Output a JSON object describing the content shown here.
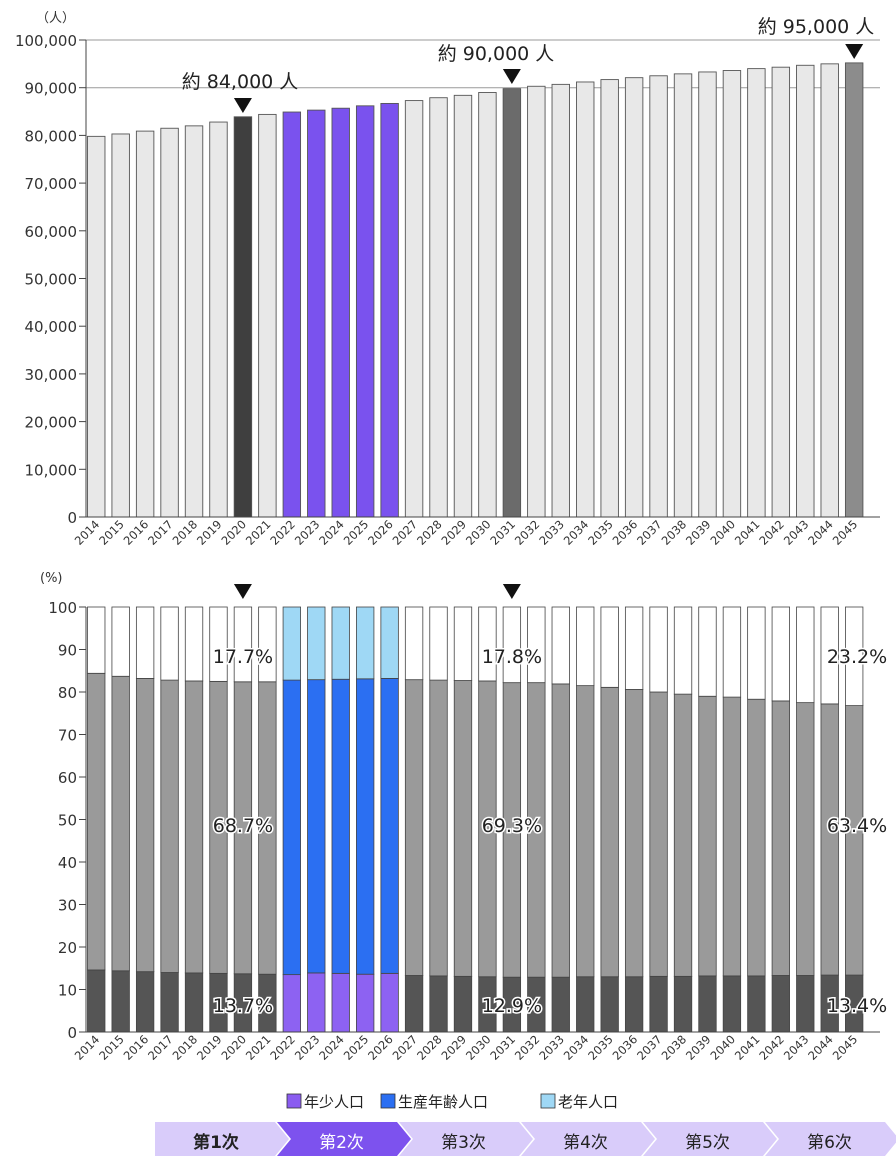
{
  "chart_data": [
    {
      "type": "bar",
      "unit_label": "（人）",
      "categories": [
        "2014",
        "2015",
        "2016",
        "2017",
        "2018",
        "2019",
        "2020",
        "2021",
        "2022",
        "2023",
        "2024",
        "2025",
        "2026",
        "2027",
        "2028",
        "2029",
        "2030",
        "2031",
        "2032",
        "2033",
        "2034",
        "2035",
        "2036",
        "2037",
        "2038",
        "2039",
        "2040",
        "2041",
        "2042",
        "2043",
        "2044",
        "2045"
      ],
      "values": [
        79800,
        80300,
        80900,
        81500,
        82000,
        82800,
        83900,
        84400,
        84900,
        85300,
        85700,
        86200,
        86700,
        87300,
        87900,
        88400,
        89000,
        89800,
        90300,
        90700,
        91200,
        91700,
        92100,
        92500,
        92900,
        93300,
        93600,
        94000,
        94300,
        94700,
        95000,
        95200
      ],
      "ylim": [
        0,
        100000
      ],
      "yticks": [
        "0",
        "10,000",
        "20,000",
        "30,000",
        "40,000",
        "50,000",
        "60,000",
        "70,000",
        "80,000",
        "90,000",
        "100,000"
      ],
      "highlight_dark": [
        "2020",
        "2031",
        "2045"
      ],
      "highlight_phase": [
        "2022",
        "2023",
        "2024",
        "2025",
        "2026"
      ],
      "annotations": [
        {
          "category": "2020",
          "text": "約 84,000 人"
        },
        {
          "category": "2031",
          "text": "約 90,000 人"
        },
        {
          "category": "2045",
          "text": "約 95,000 人"
        }
      ],
      "colors": {
        "default": "#e8e8e8",
        "dark2020": "#3f3f3f",
        "dark2031": "#6b6b6b",
        "dark2045": "#8c8c8c",
        "phase": "#7a52ee"
      }
    },
    {
      "type": "bar",
      "stacked": true,
      "unit_label": "(%)",
      "categories": [
        "2014",
        "2015",
        "2016",
        "2017",
        "2018",
        "2019",
        "2020",
        "2021",
        "2022",
        "2023",
        "2024",
        "2025",
        "2026",
        "2027",
        "2028",
        "2029",
        "2030",
        "2031",
        "2032",
        "2033",
        "2034",
        "2035",
        "2036",
        "2037",
        "2038",
        "2039",
        "2040",
        "2041",
        "2042",
        "2043",
        "2044",
        "2045"
      ],
      "ylim": [
        0,
        100
      ],
      "yticks": [
        "0",
        "10",
        "20",
        "30",
        "40",
        "50",
        "60",
        "70",
        "80",
        "90",
        "100"
      ],
      "series": [
        {
          "name": "年少人口",
          "values": [
            14.6,
            14.4,
            14.2,
            14.0,
            13.9,
            13.8,
            13.7,
            13.6,
            13.5,
            13.9,
            13.8,
            13.6,
            13.8,
            13.3,
            13.2,
            13.1,
            13.0,
            12.9,
            12.9,
            12.9,
            13.0,
            13.0,
            13.0,
            13.1,
            13.1,
            13.2,
            13.2,
            13.2,
            13.3,
            13.3,
            13.4,
            13.4
          ]
        },
        {
          "name": "生産年齢人口",
          "values": [
            69.8,
            69.3,
            69.0,
            68.8,
            68.7,
            68.7,
            68.7,
            68.8,
            69.3,
            69.0,
            69.2,
            69.5,
            69.4,
            69.6,
            69.6,
            69.6,
            69.6,
            69.3,
            69.3,
            69.0,
            68.5,
            68.1,
            67.6,
            66.9,
            66.4,
            65.8,
            65.6,
            65.1,
            64.6,
            64.2,
            63.8,
            63.4
          ]
        },
        {
          "name": "老年人口",
          "values": [
            15.6,
            16.3,
            16.8,
            17.2,
            17.4,
            17.5,
            17.7,
            17.6,
            17.2,
            17.1,
            17.0,
            16.9,
            16.8,
            17.1,
            17.2,
            17.3,
            17.4,
            17.8,
            17.8,
            18.1,
            18.5,
            18.9,
            19.4,
            20.0,
            20.5,
            21.0,
            21.2,
            21.7,
            22.1,
            22.5,
            22.8,
            23.2
          ]
        }
      ],
      "markers": [
        "2020",
        "2031"
      ],
      "labels": [
        {
          "category": "2020",
          "young": "13.7%",
          "working": "68.7%",
          "old": "17.7%"
        },
        {
          "category": "2031",
          "young": "12.9%",
          "working": "69.3%",
          "old": "17.8%"
        },
        {
          "category": "2045",
          "young": "13.4%",
          "working": "63.4%",
          "old": "23.2%"
        }
      ],
      "colors": {
        "young": "#555555",
        "working": "#9a9a9a",
        "old": "#ffffff",
        "phase_young": "#8d62f2",
        "phase_working": "#2b6ff2",
        "phase_old": "#9fd8f5"
      }
    }
  ],
  "legend": {
    "items": [
      {
        "label": "年少人口",
        "color": "#8a5cf0"
      },
      {
        "label": "生産年齢人口",
        "color": "#2b6ff2"
      },
      {
        "label": "老年人口",
        "color": "#9fd8f5"
      }
    ]
  },
  "phases": [
    {
      "label": "第1次",
      "active": false,
      "bold": true
    },
    {
      "label": "第2次",
      "active": true,
      "bold": false
    },
    {
      "label": "第3次",
      "active": false,
      "bold": false
    },
    {
      "label": "第4次",
      "active": false,
      "bold": false
    },
    {
      "label": "第5次",
      "active": false,
      "bold": false
    },
    {
      "label": "第6次",
      "active": false,
      "bold": false
    }
  ],
  "phase_colors": {
    "inactive": "#d9ccfa",
    "active": "#7d52ee",
    "text_inactive": "#222222",
    "text_active": "#ffffff"
  }
}
